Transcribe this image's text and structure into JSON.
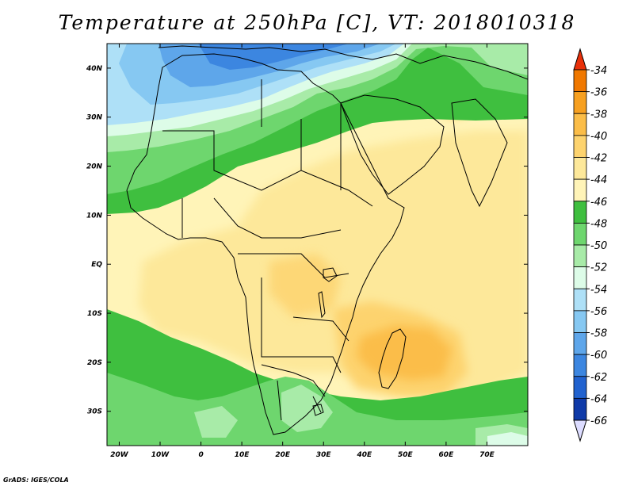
{
  "title": "Temperature at 250hPa [C], VT: 2018010318",
  "credit": "GrADS: IGES/COLA",
  "map": {
    "lon_range": [
      -23,
      80
    ],
    "lat_range": [
      -37,
      45
    ],
    "lon_ticks": [
      {
        "value": -20,
        "label": "20W"
      },
      {
        "value": -10,
        "label": "10W"
      },
      {
        "value": 0,
        "label": "0"
      },
      {
        "value": 10,
        "label": "10E"
      },
      {
        "value": 20,
        "label": "20E"
      },
      {
        "value": 30,
        "label": "30E"
      },
      {
        "value": 40,
        "label": "40E"
      },
      {
        "value": 50,
        "label": "50E"
      },
      {
        "value": 60,
        "label": "60E"
      },
      {
        "value": 70,
        "label": "70E"
      }
    ],
    "lat_ticks": [
      {
        "value": 40,
        "label": "40N"
      },
      {
        "value": 30,
        "label": "30N"
      },
      {
        "value": 20,
        "label": "20N"
      },
      {
        "value": 10,
        "label": "10N"
      },
      {
        "value": 0,
        "label": "EQ"
      },
      {
        "value": -10,
        "label": "10S"
      },
      {
        "value": -20,
        "label": "20S"
      },
      {
        "value": -30,
        "label": "30S"
      }
    ]
  },
  "colorbar": {
    "levels": [
      {
        "label": "-34",
        "color": "#f07800"
      },
      {
        "label": "-36",
        "color": "#f7a020"
      },
      {
        "label": "-38",
        "color": "#fbbd48"
      },
      {
        "label": "-40",
        "color": "#fdd36e"
      },
      {
        "label": "-42",
        "color": "#fde89a"
      },
      {
        "label": "-44",
        "color": "#fff4b8"
      },
      {
        "label": "-46",
        "color": "#3fbf3f"
      },
      {
        "label": "-48",
        "color": "#6ed66e"
      },
      {
        "label": "-50",
        "color": "#a8eba8"
      },
      {
        "label": "-52",
        "color": "#ddfce8"
      },
      {
        "label": "-54",
        "color": "#aee0f7"
      },
      {
        "label": "-56",
        "color": "#86c8f2"
      },
      {
        "label": "-58",
        "color": "#5ea6ea"
      },
      {
        "label": "-60",
        "color": "#3c86e0"
      },
      {
        "label": "-62",
        "color": "#2162cf"
      },
      {
        "label": "-64",
        "color": "#0f3aa8"
      },
      {
        "label": "-66",
        "color": "#0a1a6e"
      }
    ],
    "top_color": "#e8300a",
    "bottom_color": "#dcdcff"
  }
}
